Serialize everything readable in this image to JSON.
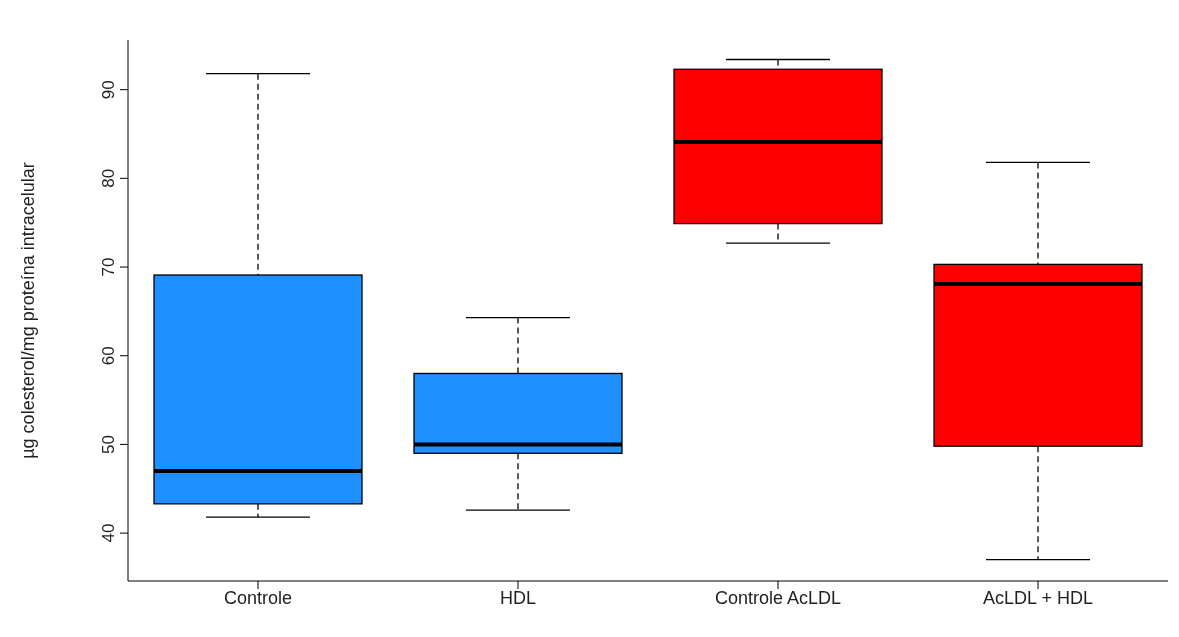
{
  "chart_data": {
    "type": "box",
    "ylabel": "µg colesterol/mg proteína intracelular",
    "categories": [
      "Controle",
      "HDL",
      "Controle AcLDL",
      "AcLDL + HDL"
    ],
    "colors": [
      "#1e90ff",
      "#1e90ff",
      "#ff0000",
      "#ff0000"
    ],
    "boxes": [
      {
        "low": 41.8,
        "q1": 43.3,
        "median": 47.0,
        "q3": 69.1,
        "high": 91.8
      },
      {
        "low": 42.6,
        "q1": 49.0,
        "median": 50.0,
        "q3": 58.0,
        "high": 64.3
      },
      {
        "low": 72.7,
        "q1": 74.9,
        "median": 84.1,
        "q3": 92.3,
        "high": 93.4
      },
      {
        "low": 37.0,
        "q1": 49.8,
        "median": 68.1,
        "q3": 70.3,
        "high": 81.8
      }
    ],
    "ylim": [
      34.6,
      95.6
    ],
    "yticks": [
      40,
      50,
      60,
      70,
      80,
      90
    ],
    "grid": false
  }
}
